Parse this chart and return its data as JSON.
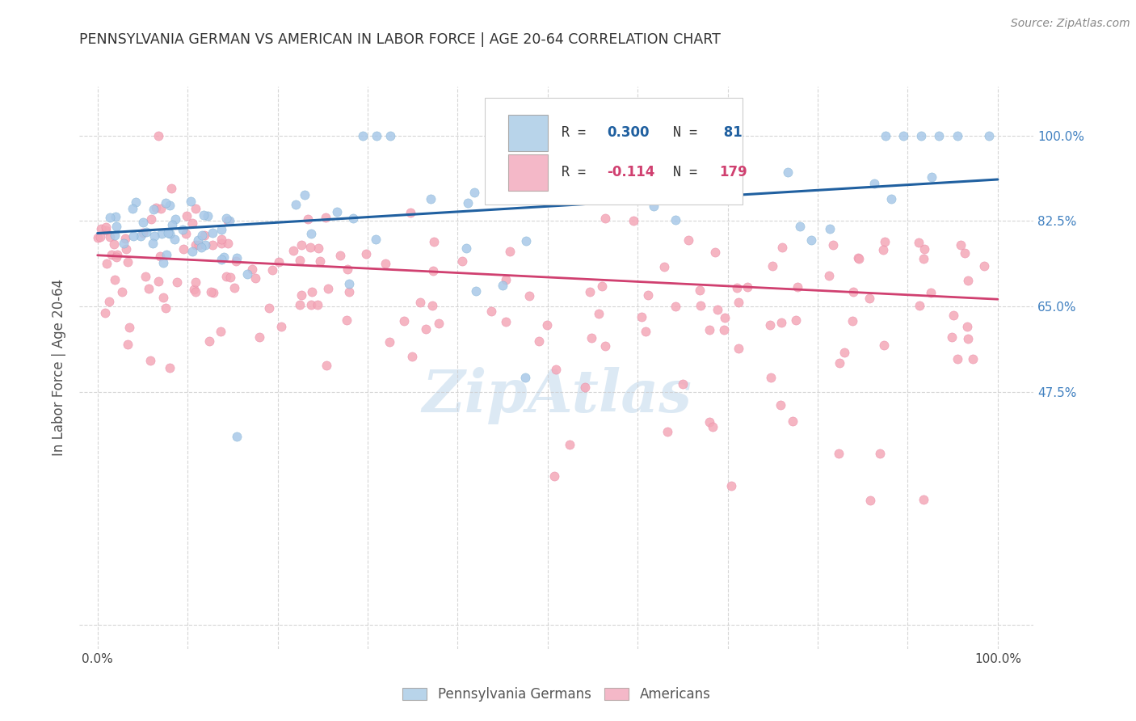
{
  "title": "PENNSYLVANIA GERMAN VS AMERICAN IN LABOR FORCE | AGE 20-64 CORRELATION CHART",
  "source": "Source: ZipAtlas.com",
  "ylabel": "In Labor Force | Age 20-64",
  "blue_color": "#a8c8e8",
  "blue_edge_color": "#7aaed0",
  "pink_color": "#f4a8b8",
  "pink_edge_color": "#e880a0",
  "blue_line_color": "#2060a0",
  "pink_line_color": "#d04070",
  "legend_blue_fill": "#b8d4ea",
  "legend_pink_fill": "#f4b8c8",
  "legend_text_color": "#2060a0",
  "legend_pink_text_color": "#d04070",
  "ytick_color": "#4080c0",
  "R_blue": 0.3,
  "N_blue": 81,
  "R_pink": -0.114,
  "N_pink": 179,
  "watermark": "ZipAtlas",
  "watermark_color": "#c0d8ec"
}
